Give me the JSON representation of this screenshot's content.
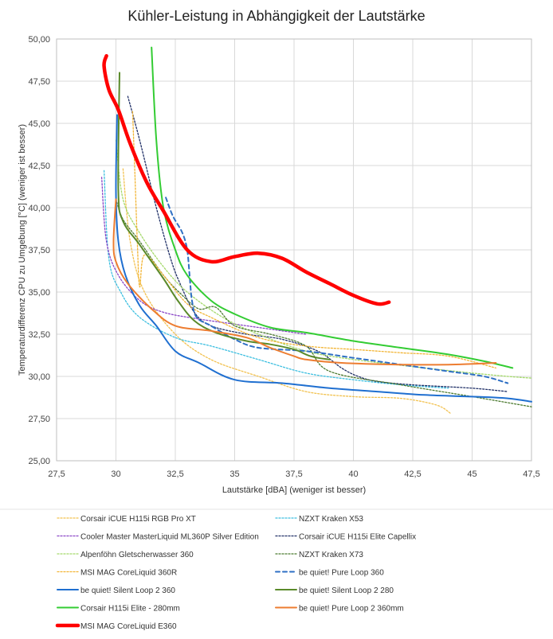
{
  "chart_data": {
    "type": "line",
    "title": "Kühler-Leistung in Abhängigkeit der Lautstärke",
    "xlabel": "Lautstärke [dBA] (weniger ist besser)",
    "ylabel": "Temperaturdifferenz CPU zu Umgebung [°C] (weniger ist besser)",
    "xlim": [
      27.5,
      47.5
    ],
    "ylim": [
      25,
      50
    ],
    "xticks": [
      "27,5",
      "30",
      "32,5",
      "35",
      "37,5",
      "40",
      "42,5",
      "45",
      "47,5"
    ],
    "yticks": [
      "25,00",
      "27,50",
      "30,00",
      "32,50",
      "35,00",
      "37,50",
      "40,00",
      "42,50",
      "45,00",
      "47,50",
      "50,00"
    ],
    "grid": true,
    "legend_position": "bottom",
    "series": [
      {
        "name": "Corsair iCUE H115i RGB Pro XT",
        "color": "#f2c14e",
        "style": "dotted",
        "width": 1.3,
        "x": [
          30.3,
          30.6,
          31.2,
          32.5,
          34,
          36,
          38,
          40,
          42,
          43.5,
          44.1
        ],
        "y": [
          42.3,
          38,
          35,
          32.5,
          31,
          30,
          29.1,
          28.8,
          28.7,
          28.3,
          27.8
        ]
      },
      {
        "name": "NZXT Kraken X53",
        "color": "#3cbfe0",
        "style": "dotted",
        "width": 1.3,
        "x": [
          29.5,
          29.7,
          30.2,
          31,
          32.5,
          34,
          36,
          38,
          40,
          42,
          44
        ],
        "y": [
          42.2,
          37,
          35,
          33.5,
          32.3,
          31.8,
          31,
          30.2,
          29.8,
          29.5,
          29.3
        ]
      },
      {
        "name": "Cooler Master MasterLiquid ML360P Silver Edition",
        "color": "#8a45c7",
        "style": "dotted",
        "width": 1.3,
        "x": [
          29.4,
          29.6,
          30.1,
          31,
          32,
          33.5,
          35,
          37,
          38
        ],
        "y": [
          41.8,
          38,
          36,
          34.5,
          33.8,
          33.4,
          33.1,
          32.7,
          32.5
        ]
      },
      {
        "name": "Corsair iCUE H115i Elite Capellix",
        "color": "#1f2f66",
        "style": "dotted",
        "width": 1.3,
        "x": [
          30.5,
          31,
          31.7,
          32.3,
          32.7,
          33.3,
          34,
          35.5,
          37,
          38.5,
          39.5,
          40.2,
          41,
          42.5,
          45,
          46.5
        ],
        "y": [
          46.6,
          44,
          40,
          37,
          35.5,
          33.8,
          33,
          32.5,
          32.2,
          31.5,
          30.5,
          30,
          29.7,
          29.5,
          29.3,
          29.1
        ]
      },
      {
        "name": "Alpenföhn Gletscherwasser 360",
        "color": "#a4d96b",
        "style": "dotted",
        "width": 1.3,
        "x": [
          30,
          30.3,
          31,
          32,
          33,
          34.5,
          36,
          38,
          40,
          43,
          45,
          46.5,
          47.5
        ],
        "y": [
          44,
          40.5,
          38.5,
          36.5,
          35,
          33.5,
          32.5,
          31.5,
          31,
          30.5,
          30.2,
          30,
          29.9
        ]
      },
      {
        "name": "NZXT Kraken X73",
        "color": "#4b7a2f",
        "style": "dotted",
        "width": 1.3,
        "x": [
          30,
          30.3,
          31,
          32,
          32.8,
          33.5,
          34.2,
          35,
          36.5,
          38,
          39,
          42,
          45,
          47.5
        ],
        "y": [
          40.5,
          39.3,
          38,
          36,
          34.8,
          34,
          34.1,
          33,
          32.5,
          31.8,
          30.3,
          29.5,
          28.8,
          28.2
        ]
      },
      {
        "name": "MSI MAG CoreLiquid 360R",
        "color": "#f2b433",
        "style": "dotted",
        "width": 1.3,
        "x": [
          30.7,
          30.8,
          30.9,
          31,
          31.2,
          32,
          33,
          34,
          36,
          38,
          40,
          42,
          44,
          46
        ],
        "y": [
          45.7,
          42,
          38,
          35.3,
          37.2,
          36,
          34.3,
          33.5,
          32.3,
          31.8,
          31.6,
          31.4,
          31.2,
          30.5
        ]
      },
      {
        "name": "be quiet! Pure Loop 360",
        "color": "#2e6fc4",
        "style": "dashed",
        "width": 2,
        "x": [
          32.1,
          32.4,
          32.8,
          33,
          33.1,
          33.2,
          33.4,
          34,
          35,
          36,
          38,
          40,
          42,
          44,
          45.5,
          46.5
        ],
        "y": [
          40.6,
          39.5,
          38.5,
          37.5,
          36,
          34.5,
          33.5,
          33,
          32.2,
          31.7,
          31.5,
          31.1,
          30.7,
          30.3,
          30,
          29.6
        ]
      },
      {
        "name": "be quiet! Silent Loop 2 360",
        "color": "#1f6fd0",
        "style": "solid",
        "width": 2,
        "x": [
          30.05,
          30,
          30.1,
          30.4,
          31,
          31.7,
          32.5,
          33.5,
          35,
          37,
          39,
          41,
          43,
          45,
          46.5,
          47.5
        ],
        "y": [
          45.5,
          41,
          38,
          36,
          34.2,
          33,
          31.5,
          30.8,
          29.8,
          29.6,
          29.3,
          29.1,
          28.9,
          28.8,
          28.7,
          28.5
        ]
      },
      {
        "name": "be quiet! Silent Loop 2 280",
        "color": "#5a8a2a",
        "style": "solid",
        "width": 2,
        "x": [
          30.15,
          30.1,
          30.3,
          31,
          32,
          32.6,
          33.3,
          34.2,
          35.5,
          36.5,
          37.5,
          38,
          38.2,
          38.5,
          39
        ],
        "y": [
          48,
          41,
          39.2,
          37.8,
          35.8,
          34.5,
          33.3,
          32.6,
          32.1,
          31.9,
          31.6,
          31.3,
          31.2,
          31.1,
          31
        ]
      },
      {
        "name": "Corsair H115i Elite - 280mm",
        "color": "#33cc33",
        "style": "solid",
        "width": 2,
        "x": [
          31.5,
          31.7,
          32,
          32.5,
          33,
          34,
          35,
          36.5,
          38,
          40,
          42,
          44,
          45.5,
          46.7
        ],
        "y": [
          49.5,
          44,
          40,
          37.5,
          36,
          34.5,
          33.7,
          32.9,
          32.6,
          32.1,
          31.7,
          31.3,
          30.9,
          30.5
        ]
      },
      {
        "name": "be quiet! Pure Loop 2 360mm",
        "color": "#ed7d31",
        "style": "solid",
        "width": 2,
        "x": [
          30,
          29.9,
          30,
          30.5,
          31.5,
          32.5,
          34,
          35.5,
          36.5,
          37.5,
          38,
          39.5,
          42,
          44,
          46
        ],
        "y": [
          40.5,
          38,
          36.8,
          35.5,
          34,
          33,
          32.7,
          32.3,
          31.7,
          31.2,
          31,
          30.8,
          30.7,
          30.7,
          30.8
        ]
      },
      {
        "name": "MSI MAG CoreLiquid E360",
        "color": "#ff0000",
        "style": "solid",
        "width": 4.5,
        "x": [
          29.6,
          29.5,
          29.7,
          30.1,
          30.6,
          31.3,
          32,
          33,
          34,
          35,
          36,
          37,
          38,
          39,
          40,
          41,
          41.5
        ],
        "y": [
          49,
          48.4,
          47,
          45.8,
          43.8,
          41.5,
          39.8,
          37.5,
          36.8,
          37.1,
          37.3,
          37,
          36.2,
          35.5,
          34.8,
          34.3,
          34.4
        ]
      }
    ]
  }
}
